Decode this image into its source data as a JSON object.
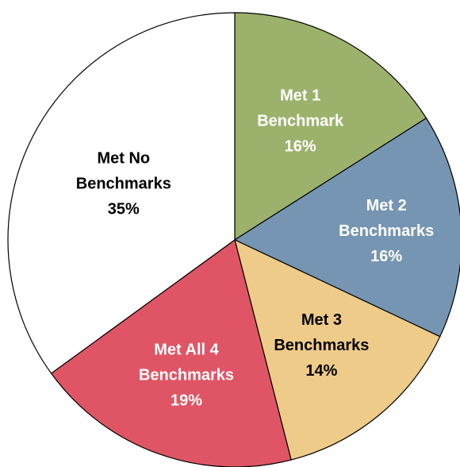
{
  "chart_data": {
    "type": "pie",
    "title": "",
    "start": "top",
    "direction": "clockwise",
    "slices": [
      {
        "label_lines": [
          "Met 1",
          "Benchmark"
        ],
        "value": 16,
        "value_label": "16%",
        "color": "#9cb26c",
        "text_color": "#ffffff"
      },
      {
        "label_lines": [
          "Met 2",
          "Benchmarks"
        ],
        "value": 16,
        "value_label": "16%",
        "color": "#7695b3",
        "text_color": "#ffffff"
      },
      {
        "label_lines": [
          "Met 3",
          "Benchmarks"
        ],
        "value": 14,
        "value_label": "14%",
        "color": "#eecb89",
        "text_color": "#000000"
      },
      {
        "label_lines": [
          "Met All 4",
          "Benchmarks"
        ],
        "value": 19,
        "value_label": "19%",
        "color": "#e05565",
        "text_color": "#ffffff"
      },
      {
        "label_lines": [
          "Met No",
          "Benchmarks"
        ],
        "value": 35,
        "value_label": "35%",
        "color": "#ffffff",
        "text_color": "#000000"
      }
    ]
  }
}
